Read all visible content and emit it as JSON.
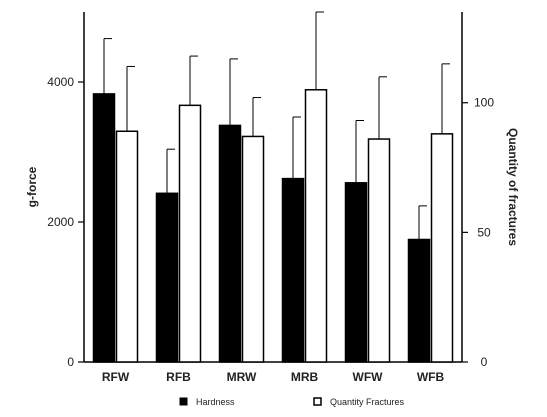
{
  "chart_data": {
    "type": "bar",
    "categories": [
      "RFW",
      "RFB",
      "MRW",
      "MRB",
      "WFW",
      "WFB"
    ],
    "ylabel_left": "g-force",
    "ylabel_right": "Quantity of fractures",
    "ylim_left": [
      0,
      5000
    ],
    "ylim_right": [
      0,
      135
    ],
    "yticks_left": [
      0,
      2000,
      4000
    ],
    "yticks_right": [
      0,
      50,
      100
    ],
    "series": [
      {
        "name": "Hardness",
        "axis": "left",
        "fill": "#000000",
        "values": [
          3830,
          2410,
          3380,
          2620,
          2560,
          1750
        ],
        "errors": [
          790,
          630,
          950,
          880,
          890,
          480
        ]
      },
      {
        "name": "Quantity Fractures",
        "axis": "right",
        "fill": "#ffffff",
        "values": [
          89,
          99,
          87,
          105,
          86,
          88
        ],
        "errors": [
          25,
          19,
          15,
          30,
          24,
          27
        ]
      }
    ],
    "legend_position": "bottom",
    "grid": false
  }
}
